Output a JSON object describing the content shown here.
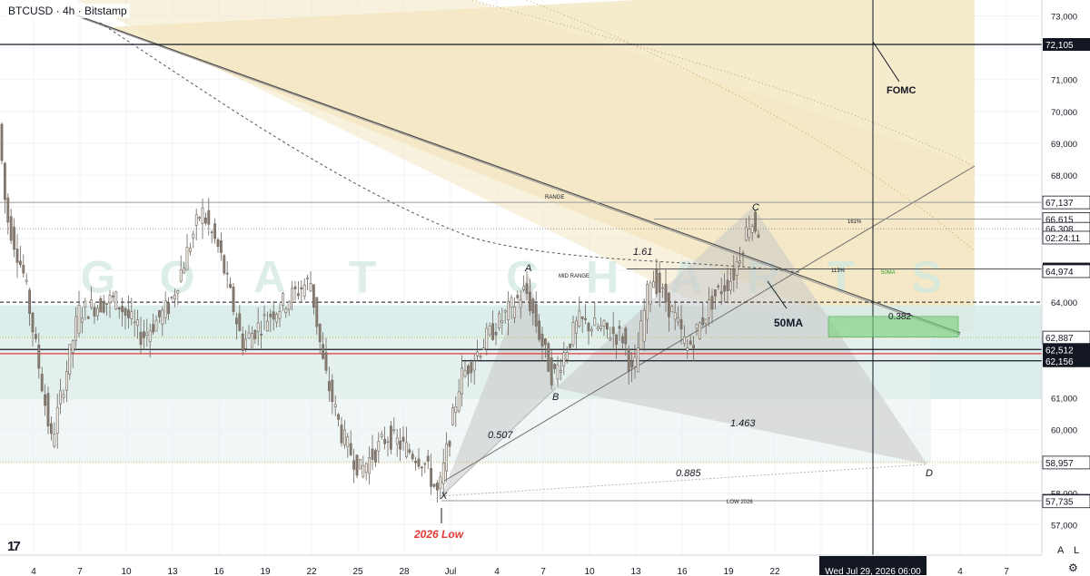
{
  "header": {
    "symbol_line": "BTCUSD · 4h · Bitstamp"
  },
  "colors": {
    "bull": "#8a7e73",
    "bear": "#8a7e73",
    "red_line": "#e53935",
    "badge_black": "#131722",
    "zone_teal": "#d6ebe7",
    "zone_yellow": "#f3e6c1",
    "pattern_gray": "#c9c9c9",
    "green_box": "#7fd07f"
  },
  "watermark": {
    "letters": [
      "G",
      "O",
      "A",
      "T",
      "C",
      "H",
      "A",
      "R",
      "T",
      "S"
    ]
  },
  "annotations": {
    "fomc": "FOMC",
    "range": "RANGE",
    "mid_range": "MID RANGE",
    "low_2026": "LOW 2026",
    "ma50_big": "50MA",
    "ma50_small": "50MA",
    "low_2026_red": "2026 Low",
    "fib_161": "161%",
    "fib_113": "113%",
    "fib_0382": "0.382",
    "ratio_161": "1.61",
    "ratio_0507": "0.507",
    "ratio_1463": "1.463",
    "ratio_0885": "0.885",
    "pt_x": "X",
    "pt_a": "A",
    "pt_b": "B",
    "pt_c": "C",
    "pt_d": "D"
  },
  "footer": {
    "date_badge": "Wed Jul 29, 2026   06:00",
    "scale_a": "A",
    "scale_l": "L",
    "logo": "17",
    "settings_icon": "gear-icon"
  },
  "chart_data": {
    "type": "candlestick",
    "title": "BTCUSD · 4h · Bitstamp",
    "xlabel": "",
    "ylabel": "",
    "ylim": [
      56600,
      73300
    ],
    "y_ticks": [
      57000,
      58000,
      59000,
      60000,
      61000,
      62000,
      63000,
      64000,
      65000,
      66000,
      67000,
      68000,
      69000,
      70000,
      71000,
      72000,
      73000
    ],
    "y_tick_labels_visible": [
      "57,000",
      "58,000",
      "60,000",
      "61,000",
      "64,000",
      "68,000",
      "69,000",
      "70,000",
      "71,000",
      "73,000"
    ],
    "x_tick_labels": [
      "4",
      "7",
      "10",
      "13",
      "16",
      "19",
      "22",
      "25",
      "28",
      "Jul",
      "4",
      "7",
      "10",
      "13",
      "16",
      "19",
      "22",
      "25",
      "28",
      "1",
      "4",
      "7"
    ],
    "grid": true,
    "price_labels": [
      {
        "text": "73,000",
        "value": 73000,
        "style": "plain"
      },
      {
        "text": "72,105",
        "value": 72105,
        "style": "black"
      },
      {
        "text": "71,000",
        "value": 71000,
        "style": "plain"
      },
      {
        "text": "70,000",
        "value": 70000,
        "style": "plain"
      },
      {
        "text": "69,000",
        "value": 69000,
        "style": "plain"
      },
      {
        "text": "68,000",
        "value": 68000,
        "style": "plain"
      },
      {
        "text": "67,137",
        "value": 67137,
        "style": "white"
      },
      {
        "text": "66,615",
        "value": 66615,
        "style": "white"
      },
      {
        "text": "66,308",
        "value": 66308,
        "style": "white"
      },
      {
        "text": "02:24:11",
        "value": 66030,
        "style": "white"
      },
      {
        "text": "65,043",
        "value": 65043,
        "style": "black"
      },
      {
        "text": "64,974",
        "value": 64974,
        "style": "white"
      },
      {
        "text": "64,000",
        "value": 64000,
        "style": "plain"
      },
      {
        "text": "62,887",
        "value": 62887,
        "style": "white"
      },
      {
        "text": "62,512",
        "value": 62512,
        "style": "black"
      },
      {
        "text": "62,156",
        "value": 62156,
        "style": "black"
      },
      {
        "text": "61,000",
        "value": 61000,
        "style": "plain"
      },
      {
        "text": "60,000",
        "value": 60000,
        "style": "plain"
      },
      {
        "text": "58,957",
        "value": 58957,
        "style": "white"
      },
      {
        "text": "58,000",
        "value": 58000,
        "style": "plain"
      },
      {
        "text": "57,756",
        "value": 57756,
        "style": "white"
      },
      {
        "text": "57,735",
        "value": 57735,
        "style": "white"
      },
      {
        "text": "57,000",
        "value": 57000,
        "style": "plain"
      }
    ],
    "horizontal_levels": [
      {
        "name": "fomc-level",
        "value": 72105
      },
      {
        "name": "range-high",
        "value": 67137
      },
      {
        "name": "fib-161-level",
        "value": 66615
      },
      {
        "name": "level-66308",
        "value": 66308
      },
      {
        "name": "level-65043",
        "value": 65043
      },
      {
        "name": "mid-range",
        "value": 64000
      },
      {
        "name": "range-low-dotted",
        "value": 62887
      },
      {
        "name": "level-62512",
        "value": 62512
      },
      {
        "name": "red-level",
        "value": 62380
      },
      {
        "name": "level-62156",
        "value": 62156
      },
      {
        "name": "range-bottom",
        "value": 58957
      },
      {
        "name": "low-2026-level",
        "value": 57756
      }
    ],
    "anchor_prices": [
      {
        "name": "x",
        "value": 57900
      },
      {
        "name": "a",
        "value": 64900
      },
      {
        "name": "b",
        "value": 61300
      },
      {
        "name": "c",
        "value": 67000
      },
      {
        "name": "d",
        "value": 58900
      }
    ]
  }
}
